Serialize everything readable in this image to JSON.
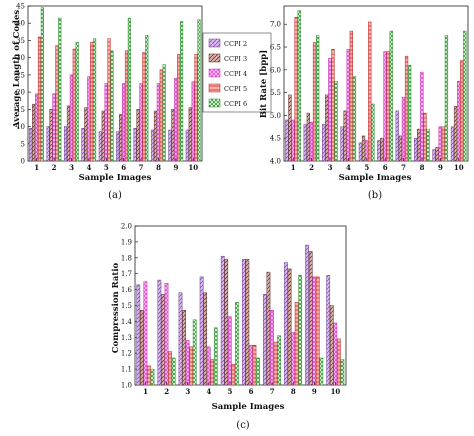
{
  "figure": {
    "panel_labels": [
      "(a)",
      "(b)",
      "(c)"
    ]
  },
  "legend": {
    "entries": [
      "CCPI 2",
      "CCPI 3",
      "CCPI 4",
      "CCPI 5",
      "CCPI 6"
    ]
  },
  "series_colors": [
    "#b07ad6",
    "#8b4f4f",
    "#e83ad6",
    "#e23a3a",
    "#3aa63a"
  ],
  "chart_data": [
    {
      "type": "bar",
      "title": "",
      "xlabel": "Sample Images",
      "ylabel": "Average Length of Codes",
      "categories": [
        "1",
        "2",
        "3",
        "4",
        "5",
        "6",
        "7",
        "8",
        "9",
        "10"
      ],
      "ylim": [
        0,
        45
      ],
      "yticks": [
        0,
        5,
        10,
        15,
        20,
        25,
        30,
        35,
        40,
        45
      ],
      "series": [
        {
          "name": "CCPI 2",
          "values": [
            9.5,
            10,
            10,
            9.5,
            8.5,
            8.5,
            9.5,
            9,
            9,
            9
          ]
        },
        {
          "name": "CCPI 3",
          "values": [
            16.5,
            15,
            16,
            15.5,
            14.5,
            13.5,
            15,
            14.5,
            15,
            15.5
          ]
        },
        {
          "name": "CCPI 4",
          "values": [
            19.5,
            19.5,
            25,
            24.5,
            22.5,
            22.5,
            22.5,
            22.5,
            24,
            23
          ]
        },
        {
          "name": "CCPI 5",
          "values": [
            36,
            33.5,
            32.5,
            34.5,
            35.5,
            32,
            31.5,
            26.5,
            31,
            31
          ]
        },
        {
          "name": "CCPI 6",
          "values": [
            44.5,
            41.5,
            34.5,
            35.5,
            32,
            41.5,
            36.5,
            28,
            40.5,
            41
          ]
        }
      ]
    },
    {
      "type": "bar",
      "title": "",
      "xlabel": "Sample Images",
      "ylabel": "Bit Rate [bpp]",
      "categories": [
        "1",
        "2",
        "3",
        "4",
        "5",
        "6",
        "7",
        "8",
        "9",
        "10"
      ],
      "ylim": [
        4.0,
        7.4
      ],
      "yticks": [
        4.0,
        4.5,
        5.0,
        5.5,
        6.0,
        6.5,
        7.0
      ],
      "series": [
        {
          "name": "CCPI 2",
          "values": [
            4.9,
            4.8,
            4.8,
            4.75,
            4.4,
            4.45,
            5.1,
            4.5,
            4.25,
            4.75
          ]
        },
        {
          "name": "CCPI 3",
          "values": [
            5.45,
            5.05,
            5.45,
            5.1,
            4.55,
            4.5,
            4.55,
            4.7,
            4.3,
            5.2
          ]
        },
        {
          "name": "CCPI 4",
          "values": [
            4.9,
            4.85,
            6.25,
            6.45,
            4.45,
            6.4,
            5.4,
            5.95,
            4.75,
            5.75
          ]
        },
        {
          "name": "CCPI 5",
          "values": [
            7.15,
            6.6,
            6.45,
            6.85,
            7.05,
            6.4,
            6.3,
            5.05,
            4.75,
            6.2
          ]
        },
        {
          "name": "CCPI 6",
          "values": [
            7.3,
            6.75,
            5.75,
            5.85,
            5.25,
            6.85,
            6.1,
            4.7,
            6.75,
            6.85
          ]
        }
      ]
    },
    {
      "type": "bar",
      "title": "",
      "xlabel": "Sample Images",
      "ylabel": "Compression Ratio",
      "categories": [
        "1",
        "2",
        "3",
        "4",
        "5",
        "6",
        "7",
        "8",
        "9",
        "10"
      ],
      "ylim": [
        1.0,
        2.0
      ],
      "yticks": [
        1.0,
        1.1,
        1.2,
        1.3,
        1.4,
        1.5,
        1.6,
        1.7,
        1.8,
        1.9,
        2.0
      ],
      "series": [
        {
          "name": "CCPI 2",
          "values": [
            1.63,
            1.66,
            1.58,
            1.68,
            1.81,
            1.79,
            1.57,
            1.77,
            1.88,
            1.69
          ]
        },
        {
          "name": "CCPI 3",
          "values": [
            1.47,
            1.57,
            1.47,
            1.58,
            1.79,
            1.79,
            1.71,
            1.73,
            1.84,
            1.5
          ]
        },
        {
          "name": "CCPI 4",
          "values": [
            1.65,
            1.64,
            1.28,
            1.24,
            1.43,
            1.25,
            1.47,
            1.33,
            1.68,
            1.39
          ]
        },
        {
          "name": "CCPI 5",
          "values": [
            1.12,
            1.21,
            1.24,
            1.16,
            1.13,
            1.25,
            1.27,
            1.52,
            1.68,
            1.29
          ]
        },
        {
          "name": "CCPI 6",
          "values": [
            1.1,
            1.17,
            1.41,
            1.36,
            1.52,
            1.17,
            1.31,
            1.69,
            1.17,
            1.16
          ]
        }
      ]
    }
  ]
}
